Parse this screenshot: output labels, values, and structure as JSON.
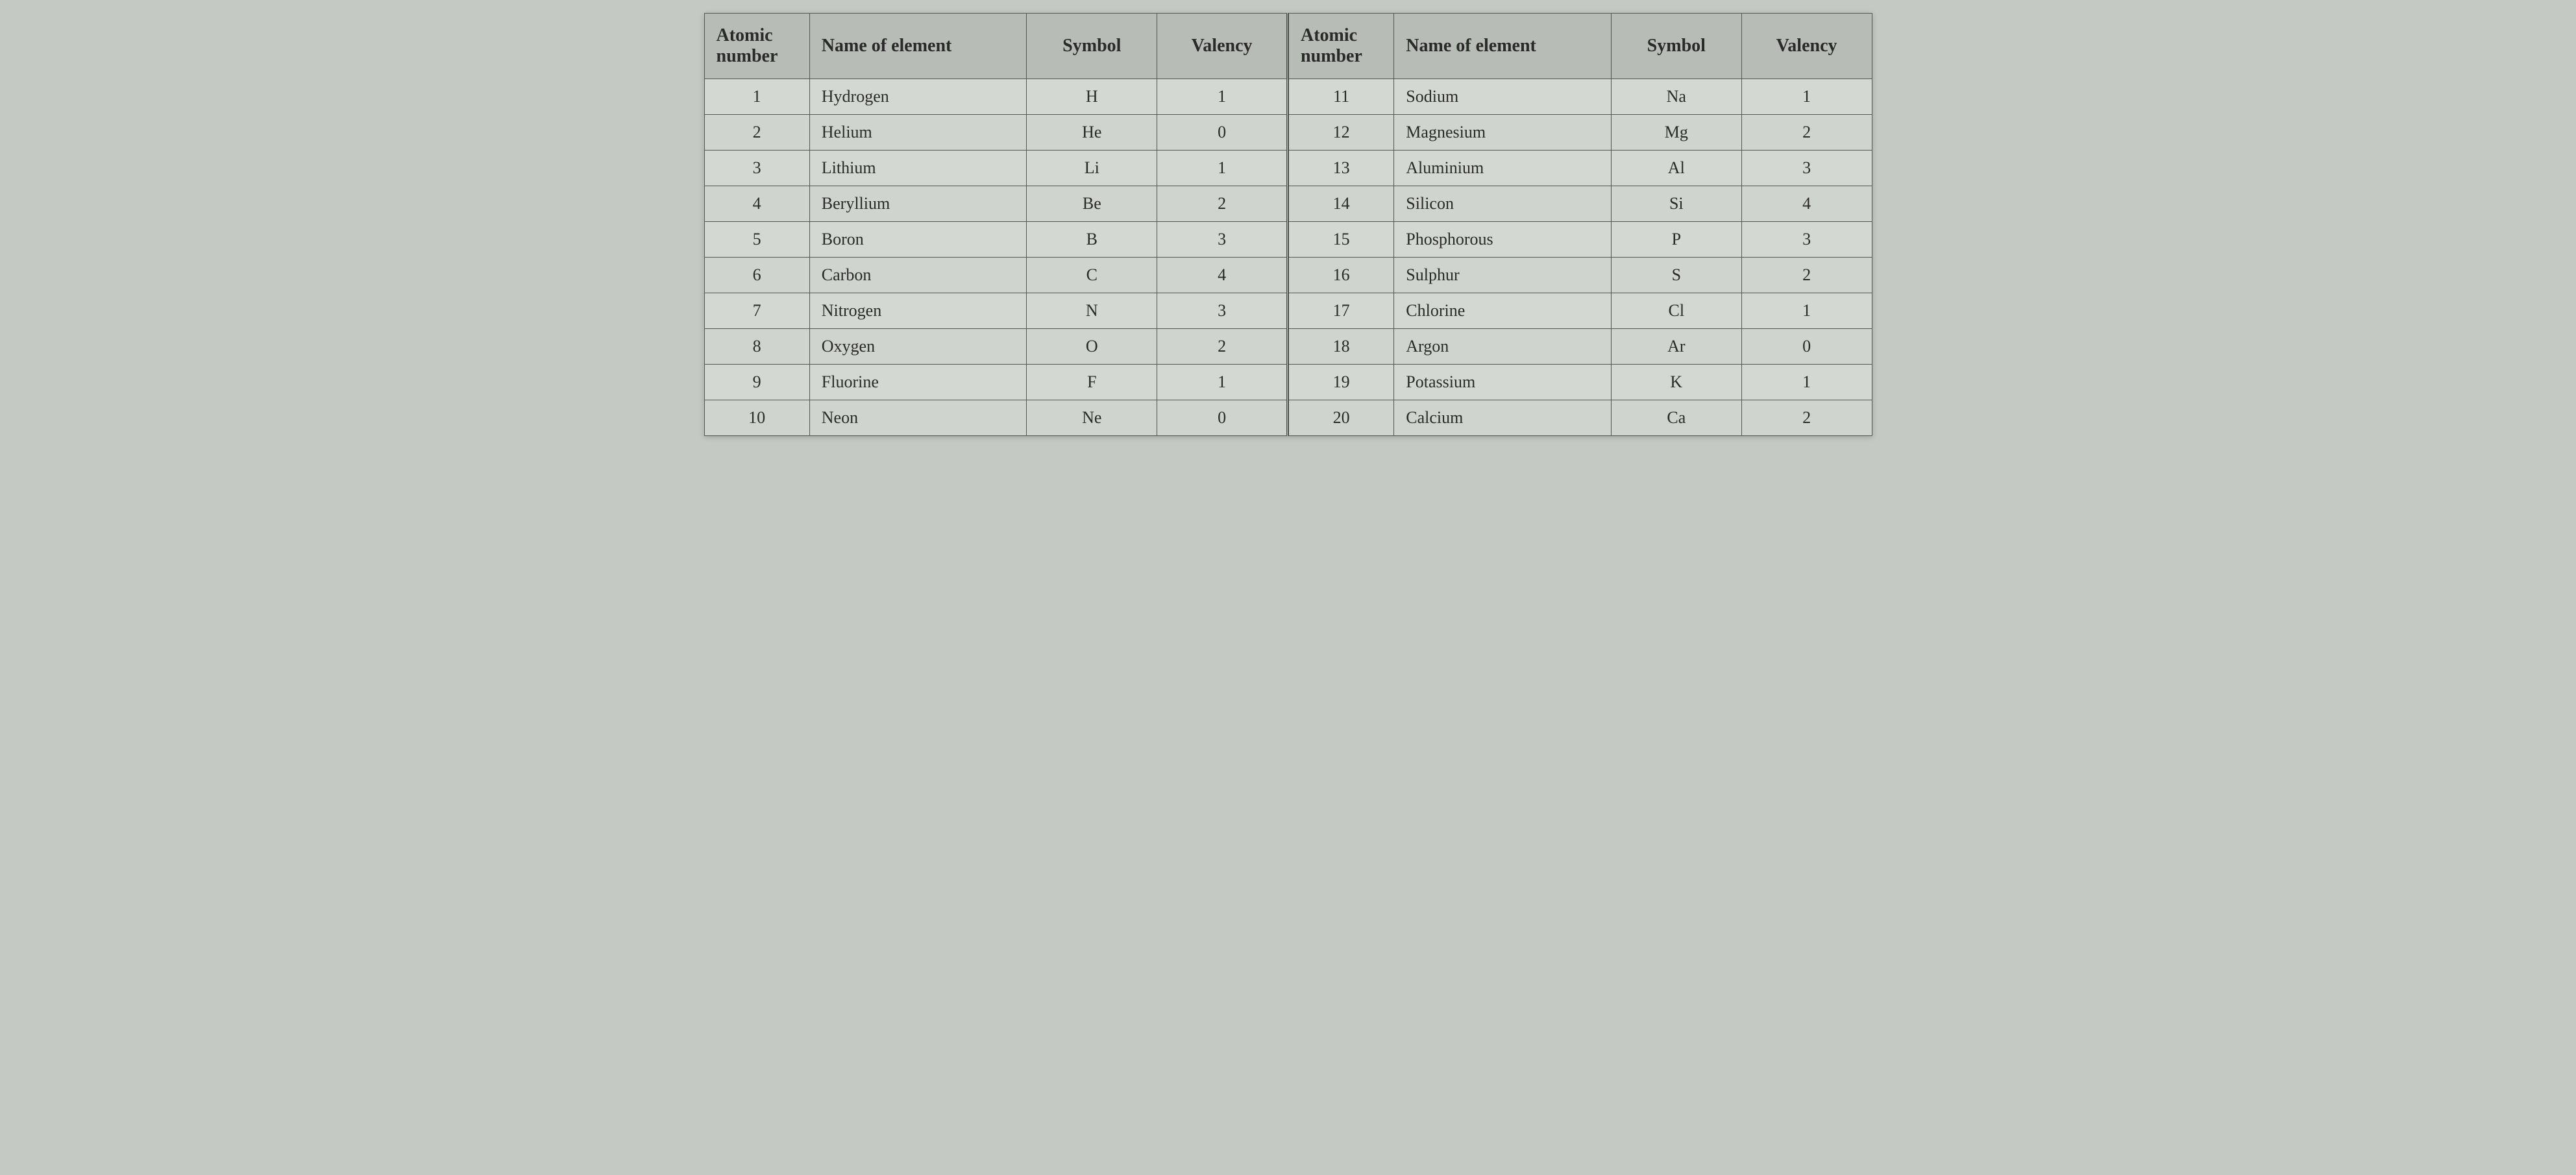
{
  "headers": {
    "atomic_number": "Atomic number",
    "name": "Name of element",
    "symbol": "Symbol",
    "valency": "Valency"
  },
  "left_rows": [
    {
      "atomic": "1",
      "name": "Hydrogen",
      "symbol": "H",
      "valency": "1"
    },
    {
      "atomic": "2",
      "name": "Helium",
      "symbol": "He",
      "valency": "0"
    },
    {
      "atomic": "3",
      "name": "Lithium",
      "symbol": "Li",
      "valency": "1"
    },
    {
      "atomic": "4",
      "name": "Beryllium",
      "symbol": "Be",
      "valency": "2"
    },
    {
      "atomic": "5",
      "name": "Boron",
      "symbol": "B",
      "valency": "3"
    },
    {
      "atomic": "6",
      "name": "Carbon",
      "symbol": "C",
      "valency": "4"
    },
    {
      "atomic": "7",
      "name": "Nitrogen",
      "symbol": "N",
      "valency": "3"
    },
    {
      "atomic": "8",
      "name": "Oxygen",
      "symbol": "O",
      "valency": "2"
    },
    {
      "atomic": "9",
      "name": "Fluorine",
      "symbol": "F",
      "valency": "1"
    },
    {
      "atomic": "10",
      "name": "Neon",
      "symbol": "Ne",
      "valency": "0"
    }
  ],
  "right_rows": [
    {
      "atomic": "11",
      "name": "Sodium",
      "symbol": "Na",
      "valency": "1"
    },
    {
      "atomic": "12",
      "name": "Magnesium",
      "symbol": "Mg",
      "valency": "2"
    },
    {
      "atomic": "13",
      "name": "Aluminium",
      "symbol": "Al",
      "valency": "3"
    },
    {
      "atomic": "14",
      "name": "Silicon",
      "symbol": "Si",
      "valency": "4"
    },
    {
      "atomic": "15",
      "name": "Phosphorous",
      "symbol": "P",
      "valency": "3"
    },
    {
      "atomic": "16",
      "name": "Sulphur",
      "symbol": "S",
      "valency": "2"
    },
    {
      "atomic": "17",
      "name": "Chlorine",
      "symbol": "Cl",
      "valency": "1"
    },
    {
      "atomic": "18",
      "name": "Argon",
      "symbol": "Ar",
      "valency": "0"
    },
    {
      "atomic": "19",
      "name": "Potassium",
      "symbol": "K",
      "valency": "1"
    },
    {
      "atomic": "20",
      "name": "Calcium",
      "symbol": "Ca",
      "valency": "2"
    }
  ],
  "styling": {
    "header_bg": "#b8bcb6",
    "row_bg": "#d4d8d2",
    "row_alt_bg": "#d0d4ce",
    "border_color": "#555",
    "text_color": "#2a2a2a",
    "font_family": "Georgia, Times New Roman, serif",
    "header_fontsize": 28,
    "cell_fontsize": 26
  }
}
